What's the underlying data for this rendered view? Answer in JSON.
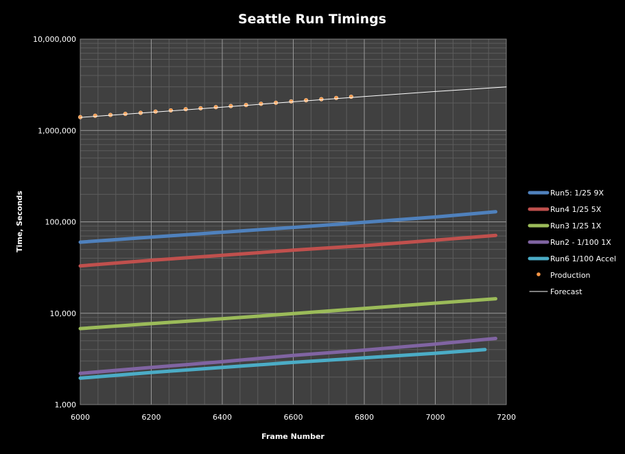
{
  "chart_data": {
    "type": "line",
    "title": "Seattle Run Timings",
    "xlabel": "Frame Number",
    "ylabel": "Time, Seconds",
    "xlim": [
      6000,
      7200
    ],
    "ylim": [
      1000,
      10000000
    ],
    "y_scale": "log",
    "x_ticks": [
      "6000",
      "6200",
      "6400",
      "6600",
      "6800",
      "7000",
      "7200"
    ],
    "y_ticks": [
      "10,000,000",
      "1,000,000",
      "100,000",
      "10,000",
      "1,000"
    ],
    "grid": "on",
    "plot_background": "#404040",
    "legend_position": "right",
    "series": [
      {
        "name": "Run5: 1/25 9X",
        "kind": "line",
        "color": "#4f81bd",
        "points": [
          [
            6000,
            60000
          ],
          [
            6200,
            68000
          ],
          [
            6400,
            77000
          ],
          [
            6600,
            87000
          ],
          [
            6800,
            99000
          ],
          [
            7000,
            113000
          ],
          [
            7170,
            129000
          ]
        ]
      },
      {
        "name": "Run4 1/25 5X",
        "kind": "line",
        "color": "#c0504d",
        "points": [
          [
            6000,
            33000
          ],
          [
            6200,
            38000
          ],
          [
            6400,
            43000
          ],
          [
            6600,
            49000
          ],
          [
            6800,
            55000
          ],
          [
            7000,
            63000
          ],
          [
            7170,
            71000
          ]
        ]
      },
      {
        "name": "Run3 1/25 1X",
        "kind": "line",
        "color": "#9bbb59",
        "points": [
          [
            6000,
            6800
          ],
          [
            6200,
            7700
          ],
          [
            6400,
            8700
          ],
          [
            6600,
            9900
          ],
          [
            6800,
            11300
          ],
          [
            7000,
            12900
          ],
          [
            7170,
            14400
          ]
        ]
      },
      {
        "name": "Run2 - 1/100 1X",
        "kind": "line",
        "color": "#8064a2",
        "points": [
          [
            6000,
            2200
          ],
          [
            6200,
            2550
          ],
          [
            6400,
            2950
          ],
          [
            6600,
            3450
          ],
          [
            6800,
            3950
          ],
          [
            7000,
            4600
          ],
          [
            7170,
            5300
          ]
        ]
      },
      {
        "name": "Run6 1/100 Accel",
        "kind": "line",
        "color": "#4bacc6",
        "points": [
          [
            6000,
            1950
          ],
          [
            6200,
            2250
          ],
          [
            6400,
            2550
          ],
          [
            6600,
            2900
          ],
          [
            6800,
            3250
          ],
          [
            7000,
            3650
          ],
          [
            7140,
            4000
          ]
        ]
      },
      {
        "name": "Production",
        "kind": "marker",
        "color": "#f79646",
        "points": [
          [
            6000,
            1400000
          ],
          [
            6042,
            1450000
          ],
          [
            6085,
            1480000
          ],
          [
            6127,
            1520000
          ],
          [
            6170,
            1560000
          ],
          [
            6212,
            1610000
          ],
          [
            6255,
            1660000
          ],
          [
            6297,
            1710000
          ],
          [
            6339,
            1750000
          ],
          [
            6382,
            1800000
          ],
          [
            6424,
            1850000
          ],
          [
            6467,
            1900000
          ],
          [
            6509,
            1960000
          ],
          [
            6551,
            2010000
          ],
          [
            6594,
            2080000
          ],
          [
            6636,
            2140000
          ],
          [
            6679,
            2200000
          ],
          [
            6721,
            2270000
          ],
          [
            6763,
            2340000
          ]
        ]
      },
      {
        "name": "Forecast",
        "kind": "line",
        "color": "#ffffff",
        "points": [
          [
            6000,
            1390000
          ],
          [
            6200,
            1580000
          ],
          [
            6400,
            1800000
          ],
          [
            6600,
            2060000
          ],
          [
            6800,
            2350000
          ],
          [
            7000,
            2670000
          ],
          [
            7200,
            3000000
          ]
        ]
      }
    ]
  }
}
